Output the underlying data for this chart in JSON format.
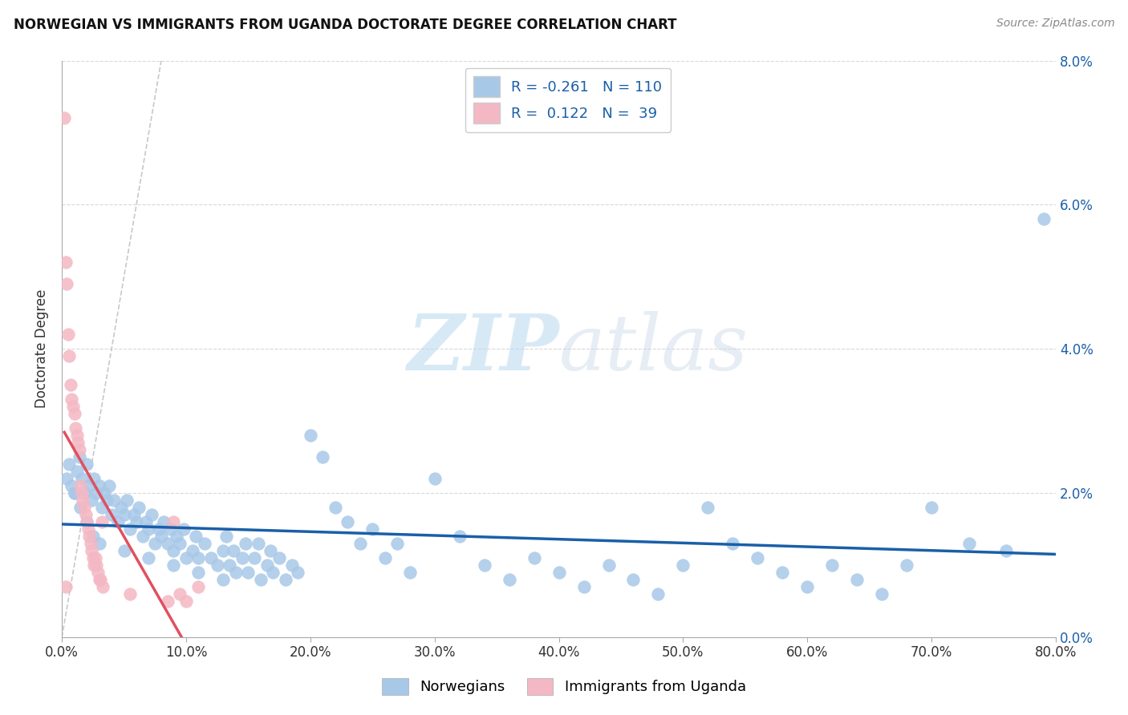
{
  "title": "NORWEGIAN VS IMMIGRANTS FROM UGANDA DOCTORATE DEGREE CORRELATION CHART",
  "source": "Source: ZipAtlas.com",
  "ylabel": "Doctorate Degree",
  "xlim": [
    0.0,
    0.8
  ],
  "ylim": [
    0.0,
    0.08
  ],
  "yticks": [
    0.0,
    0.02,
    0.04,
    0.06,
    0.08
  ],
  "xticks": [
    0.0,
    0.1,
    0.2,
    0.3,
    0.4,
    0.5,
    0.6,
    0.7,
    0.8
  ],
  "ytick_labels_right": [
    "0.0%",
    "2.0%",
    "4.0%",
    "6.0%",
    "8.0%"
  ],
  "xtick_labels": [
    "0.0%",
    "10.0%",
    "20.0%",
    "30.0%",
    "40.0%",
    "50.0%",
    "60.0%",
    "70.0%",
    "80.0%"
  ],
  "norwegian_color": "#a8c8e8",
  "uganda_color": "#f4b8c4",
  "norwegian_line_color": "#1a5fa8",
  "uganda_line_color": "#e05060",
  "diagonal_color": "#c8c8c8",
  "R_norwegian": -0.261,
  "N_norwegian": 110,
  "R_uganda": 0.122,
  "N_uganda": 39,
  "watermark_zip": "ZIP",
  "watermark_atlas": "atlas",
  "legend_label_norwegian": "Norwegians",
  "legend_label_uganda": "Immigrants from Uganda",
  "norwegian_scatter_x": [
    0.004,
    0.006,
    0.008,
    0.01,
    0.012,
    0.014,
    0.016,
    0.018,
    0.02,
    0.022,
    0.024,
    0.026,
    0.028,
    0.03,
    0.032,
    0.034,
    0.036,
    0.038,
    0.04,
    0.042,
    0.045,
    0.048,
    0.05,
    0.052,
    0.055,
    0.058,
    0.06,
    0.062,
    0.065,
    0.068,
    0.07,
    0.072,
    0.075,
    0.078,
    0.08,
    0.082,
    0.085,
    0.088,
    0.09,
    0.092,
    0.095,
    0.098,
    0.1,
    0.105,
    0.108,
    0.11,
    0.115,
    0.12,
    0.125,
    0.13,
    0.132,
    0.135,
    0.138,
    0.14,
    0.145,
    0.148,
    0.15,
    0.155,
    0.158,
    0.16,
    0.165,
    0.168,
    0.17,
    0.175,
    0.18,
    0.185,
    0.19,
    0.2,
    0.21,
    0.22,
    0.23,
    0.24,
    0.25,
    0.26,
    0.27,
    0.28,
    0.3,
    0.32,
    0.34,
    0.36,
    0.38,
    0.4,
    0.42,
    0.44,
    0.46,
    0.48,
    0.5,
    0.52,
    0.54,
    0.56,
    0.58,
    0.6,
    0.62,
    0.64,
    0.66,
    0.68,
    0.7,
    0.73,
    0.76,
    0.79,
    0.01,
    0.015,
    0.02,
    0.025,
    0.03,
    0.05,
    0.07,
    0.09,
    0.11,
    0.13
  ],
  "norwegian_scatter_y": [
    0.022,
    0.024,
    0.021,
    0.02,
    0.023,
    0.025,
    0.022,
    0.02,
    0.024,
    0.021,
    0.019,
    0.022,
    0.02,
    0.021,
    0.018,
    0.02,
    0.019,
    0.021,
    0.017,
    0.019,
    0.016,
    0.018,
    0.017,
    0.019,
    0.015,
    0.017,
    0.016,
    0.018,
    0.014,
    0.016,
    0.015,
    0.017,
    0.013,
    0.015,
    0.014,
    0.016,
    0.013,
    0.015,
    0.012,
    0.014,
    0.013,
    0.015,
    0.011,
    0.012,
    0.014,
    0.011,
    0.013,
    0.011,
    0.01,
    0.012,
    0.014,
    0.01,
    0.012,
    0.009,
    0.011,
    0.013,
    0.009,
    0.011,
    0.013,
    0.008,
    0.01,
    0.012,
    0.009,
    0.011,
    0.008,
    0.01,
    0.009,
    0.028,
    0.025,
    0.018,
    0.016,
    0.013,
    0.015,
    0.011,
    0.013,
    0.009,
    0.022,
    0.014,
    0.01,
    0.008,
    0.011,
    0.009,
    0.007,
    0.01,
    0.008,
    0.006,
    0.01,
    0.018,
    0.013,
    0.011,
    0.009,
    0.007,
    0.01,
    0.008,
    0.006,
    0.01,
    0.018,
    0.013,
    0.012,
    0.058,
    0.02,
    0.018,
    0.016,
    0.014,
    0.013,
    0.012,
    0.011,
    0.01,
    0.009,
    0.008
  ],
  "uganda_scatter_x": [
    0.002,
    0.003,
    0.004,
    0.005,
    0.006,
    0.007,
    0.008,
    0.009,
    0.01,
    0.011,
    0.012,
    0.013,
    0.014,
    0.015,
    0.016,
    0.017,
    0.018,
    0.019,
    0.02,
    0.021,
    0.022,
    0.023,
    0.024,
    0.025,
    0.026,
    0.027,
    0.028,
    0.029,
    0.03,
    0.031,
    0.032,
    0.033,
    0.055,
    0.085,
    0.09,
    0.095,
    0.1,
    0.11,
    0.003
  ],
  "uganda_scatter_y": [
    0.072,
    0.052,
    0.049,
    0.042,
    0.039,
    0.035,
    0.033,
    0.032,
    0.031,
    0.029,
    0.028,
    0.027,
    0.026,
    0.021,
    0.02,
    0.019,
    0.018,
    0.017,
    0.016,
    0.015,
    0.014,
    0.013,
    0.012,
    0.011,
    0.01,
    0.011,
    0.01,
    0.009,
    0.008,
    0.008,
    0.016,
    0.007,
    0.006,
    0.005,
    0.016,
    0.006,
    0.005,
    0.007,
    0.007
  ]
}
